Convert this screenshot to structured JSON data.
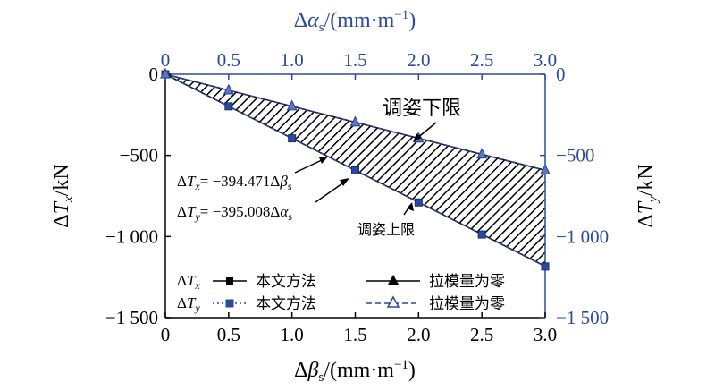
{
  "chart_data": {
    "type": "line",
    "bottom_axis": {
      "label": "Δβs/(mm·m⁻¹)",
      "range": [
        0,
        3.0
      ],
      "ticks": [
        "0",
        "0.5",
        "1.0",
        "1.5",
        "2.0",
        "2.5",
        "3.0"
      ]
    },
    "top_axis": {
      "label": "Δαs/(mm·m⁻¹)",
      "range": [
        0,
        3.0
      ],
      "ticks": [
        "0",
        "0.5",
        "1.0",
        "1.5",
        "2.0",
        "2.5",
        "3.0"
      ],
      "color": "#2b4a9b"
    },
    "left_axis": {
      "label": "ΔTx/kN",
      "range": [
        -1500,
        0
      ],
      "ticks": [
        "0",
        "−500",
        "−1 000",
        "−1 500"
      ]
    },
    "right_axis": {
      "label": "ΔTy/kN",
      "range": [
        -1500,
        0
      ],
      "ticks": [
        "0",
        "−500",
        "−1 000",
        "−1 500"
      ],
      "color": "#2b4a9b"
    },
    "x": [
      0,
      0.5,
      1.0,
      1.5,
      2.0,
      2.5,
      3.0
    ],
    "series": [
      {
        "name": "本文方法",
        "prefix": "ΔTx",
        "marker": "square",
        "color": "#1a1a1a",
        "values": [
          0,
          -197.2,
          -394.5,
          -591.7,
          -788.9,
          -986.2,
          -1183.4
        ]
      },
      {
        "name": "拉模量为零",
        "prefix": "ΔTx",
        "marker": "triangle",
        "color": "#1a1a1a",
        "values": [
          0,
          -98.6,
          -197.2,
          -295.9,
          -394.5,
          -493.1,
          -591.7
        ]
      },
      {
        "name": "本文方法",
        "prefix": "ΔTy",
        "marker": "square",
        "color": "#2b4a9b",
        "dashed": true,
        "values": [
          0,
          -197.5,
          -395.0,
          -592.5,
          -790.0,
          -987.5,
          -1185.0
        ]
      },
      {
        "name": "拉模量为零",
        "prefix": "ΔTy",
        "marker": "triangle",
        "color": "#2b4a9b",
        "dashed": true,
        "values": [
          0,
          -98.8,
          -197.5,
          -296.3,
          -395.0,
          -493.8,
          -592.5
        ]
      }
    ],
    "annotations": {
      "upper_limit": "调姿下限",
      "lower_limit": "调姿上限",
      "eq_x": "ΔTx= −394.471Δβs",
      "eq_y": "ΔTy= −395.008Δαs"
    },
    "legend_position": "bottom-left",
    "grid": false
  }
}
